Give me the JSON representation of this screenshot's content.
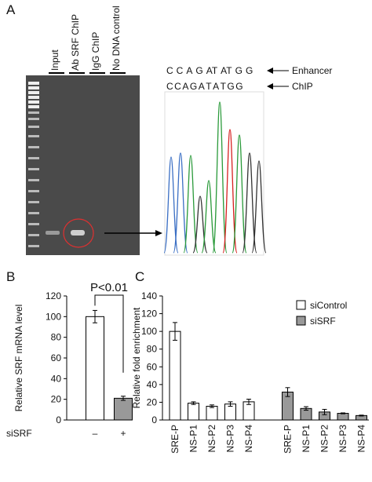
{
  "panels": [
    "A",
    "B",
    "C"
  ],
  "gel": {
    "lanes": [
      "Input",
      "Ab SRF ChIP",
      "IgG ChIP",
      "No DNA control"
    ]
  },
  "sequence": {
    "enhancer": {
      "label": "Enhancer",
      "bases": [
        "C",
        "C",
        "A",
        "G",
        "AT",
        "AT",
        "G",
        "G"
      ],
      "colors": [
        "#d62020",
        "#d62020",
        "#222222",
        "#222222",
        "#222222",
        "#222222",
        "#d62020",
        "#d62020"
      ]
    },
    "chip": {
      "label": "ChIP",
      "bases": [
        "C",
        "C",
        "A",
        "G",
        "A",
        "T",
        "A",
        "T",
        "G",
        "G"
      ],
      "colors": [
        "#3b6fc4",
        "#3b6fc4",
        "#2a9a3a",
        "#222222",
        "#2a9a3a",
        "#d62020",
        "#2a9a3a",
        "#d62020",
        "#222222",
        "#222222"
      ]
    }
  },
  "chart_data": [
    {
      "type": "bar",
      "ylabel": "Relative SRF mRNA level",
      "xlabel": "siSRF",
      "annotation": "P<0.01",
      "categories": [
        "–",
        "+"
      ],
      "values": [
        100,
        21
      ],
      "errors": [
        6,
        2
      ],
      "colors": [
        "#ffffff",
        "#999999"
      ],
      "ylim": [
        0,
        120
      ],
      "yticks": [
        0,
        20,
        40,
        60,
        80,
        100,
        120
      ]
    },
    {
      "type": "bar",
      "ylabel": "Relative fold enrichment",
      "categories": [
        "SRE-P",
        "NS-P1",
        "NS-P2",
        "NS-P3",
        "NS-P4",
        "SRE-P",
        "NS-P1",
        "NS-P2",
        "NS-P3",
        "NS-P4"
      ],
      "series": [
        {
          "name": "siControl",
          "color": "#ffffff",
          "values": [
            100,
            19,
            15.5,
            18,
            20.5,
            null,
            null,
            null,
            null,
            null
          ],
          "errors": [
            10,
            1.5,
            1.5,
            2.5,
            3,
            null,
            null,
            null,
            null,
            null
          ]
        },
        {
          "name": "siSRF",
          "color": "#999999",
          "values": [
            null,
            null,
            null,
            null,
            null,
            31.5,
            13,
            9,
            7.5,
            5
          ],
          "errors": [
            null,
            null,
            null,
            null,
            null,
            5,
            2,
            3,
            0.5,
            0.5
          ]
        }
      ],
      "ylim": [
        0,
        140
      ],
      "yticks": [
        0,
        20,
        40,
        60,
        80,
        100,
        120,
        140
      ],
      "legend": "upper right"
    }
  ]
}
